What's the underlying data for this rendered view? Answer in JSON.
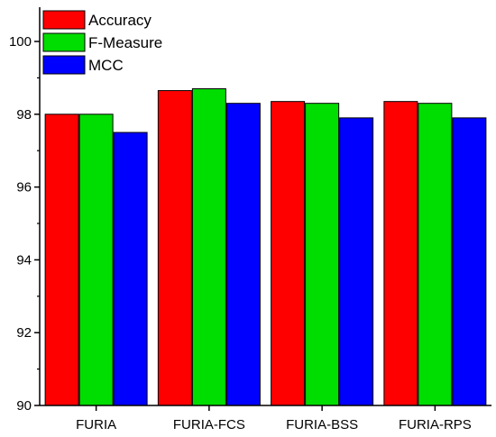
{
  "chart_data": {
    "type": "bar",
    "categories": [
      "FURIA",
      "FURIA-FCS",
      "FURIA-BSS",
      "FURIA-RPS"
    ],
    "series": [
      {
        "name": "Accuracy",
        "color": "#ff0000",
        "values": [
          98.0,
          98.65,
          98.35,
          98.35
        ]
      },
      {
        "name": "F-Measure",
        "color": "#00dd00",
        "values": [
          98.0,
          98.7,
          98.3,
          98.3
        ]
      },
      {
        "name": "MCC",
        "color": "#0000ff",
        "values": [
          97.5,
          98.3,
          97.9,
          97.9
        ]
      }
    ],
    "ylim": [
      90,
      100
    ],
    "yticks": [
      90,
      92,
      94,
      96,
      98,
      100
    ],
    "legend": "top-left",
    "grid": false,
    "title": "",
    "xlabel": "",
    "ylabel": ""
  }
}
